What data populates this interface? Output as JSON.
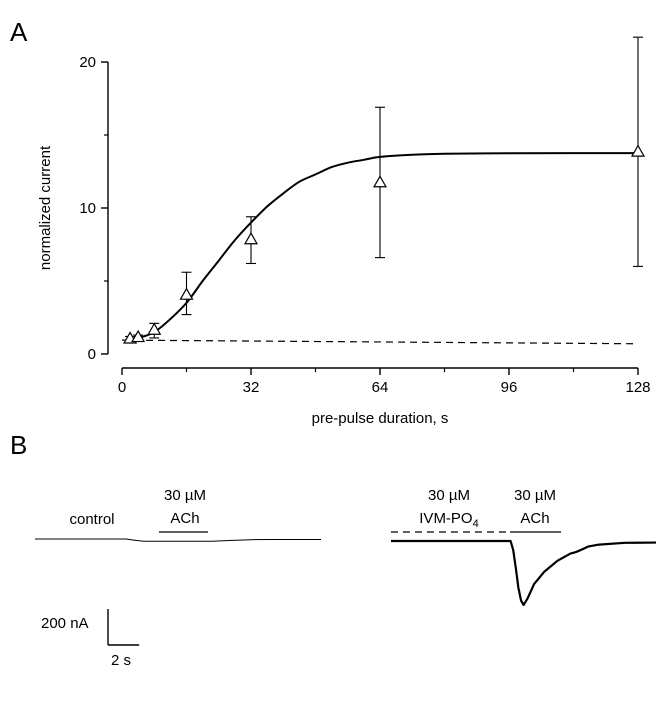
{
  "panels": {
    "a": "A",
    "b": "B"
  },
  "chart_data": [
    {
      "type": "scatter",
      "panel": "A",
      "xlabel": "pre-pulse duration, s",
      "ylabel": "normalized current",
      "xlim": [
        0,
        128
      ],
      "ylim": [
        0,
        20
      ],
      "x_ticks": [
        0,
        32,
        64,
        96,
        128
      ],
      "y_ticks": [
        0,
        10,
        20
      ],
      "grid": false,
      "marker": "open-triangle",
      "series": [
        {
          "x": [
            2,
            4,
            8,
            16,
            32,
            64,
            128
          ],
          "y": [
            1.0,
            1.1,
            1.6,
            4.0,
            7.8,
            11.7,
            13.8
          ],
          "error_plus": [
            0.2,
            0.2,
            0.5,
            1.6,
            1.6,
            5.2,
            7.9
          ],
          "error_minus": [
            0.2,
            0.2,
            0.5,
            1.3,
            1.6,
            5.1,
            7.8
          ]
        }
      ],
      "fit_curve": {
        "style": "solid",
        "x": [
          1,
          4,
          8,
          12,
          16,
          20,
          24,
          28,
          32,
          36,
          40,
          44,
          48,
          52,
          56,
          60,
          64,
          72,
          80,
          96,
          112,
          128
        ],
        "y": [
          1.0,
          1.1,
          1.5,
          2.4,
          3.5,
          5.0,
          6.4,
          7.8,
          9.0,
          10.1,
          11.0,
          11.8,
          12.3,
          12.8,
          13.1,
          13.3,
          13.5,
          13.65,
          13.72,
          13.75,
          13.76,
          13.76
        ]
      },
      "baseline": {
        "style": "dashed",
        "x": [
          0,
          128
        ],
        "y": [
          0.95,
          0.7
        ]
      }
    },
    {
      "type": "line",
      "panel": "B",
      "traces": [
        {
          "label": "control",
          "application": {
            "conc": "30 µM",
            "drug": "ACh"
          },
          "t": [
            0,
            3.5,
            3.8,
            4.0,
            4.2,
            5.0,
            6.0,
            6.8,
            7.6,
            8.3,
            9.0,
            11.0
          ],
          "i": [
            0,
            0,
            -6,
            -10,
            -12,
            -12,
            -12,
            -13,
            -8,
            -4,
            -3,
            -3
          ]
        },
        {
          "pre_application": {
            "conc": "30 µM",
            "drug": "IVM-PO",
            "subscript": "4"
          },
          "application": {
            "conc": "30 µM",
            "drug": "ACh"
          },
          "t": [
            0,
            4.6,
            4.7,
            4.8,
            4.9,
            5.0,
            5.1,
            5.25,
            5.5,
            5.9,
            6.4,
            6.9,
            7.1,
            7.3,
            7.6,
            8.0,
            9.0,
            11.0
          ],
          "i": [
            0,
            0,
            -50,
            -150,
            -260,
            -330,
            -355,
            -320,
            -240,
            -170,
            -110,
            -70,
            -62,
            -50,
            -30,
            -20,
            -10,
            -8
          ]
        }
      ],
      "scale_bar": {
        "current_value": 200,
        "current_label": "200 nA",
        "time_value": 2,
        "time_label": "2 s"
      }
    }
  ]
}
